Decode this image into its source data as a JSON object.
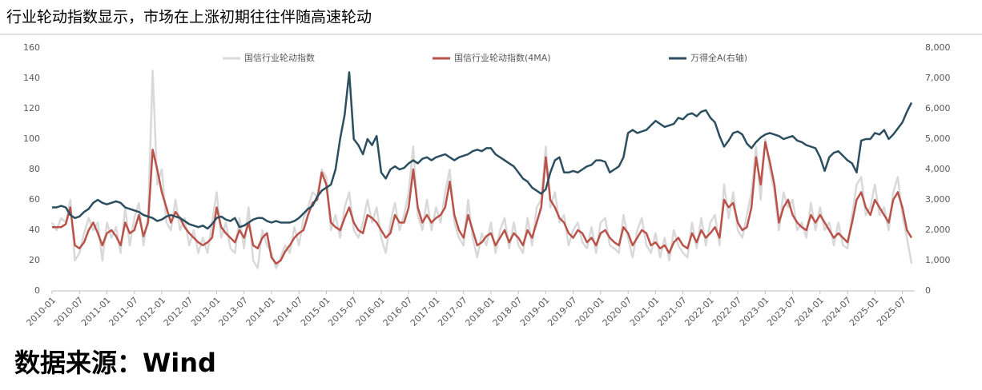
{
  "chart_data": {
    "type": "line",
    "title": "行业轮动指数显示，市场在上涨初期往往伴随高速轮动",
    "source": "数据来源：Wind",
    "categories": [
      "2010-01",
      null,
      null,
      null,
      null,
      null,
      "2010-07",
      null,
      null,
      null,
      null,
      null,
      "2011-01",
      null,
      null,
      null,
      null,
      null,
      "2011-07",
      null,
      null,
      null,
      null,
      null,
      "2012-01",
      null,
      null,
      null,
      null,
      null,
      "2012-07",
      null,
      null,
      null,
      null,
      null,
      "2013-01",
      null,
      null,
      null,
      null,
      null,
      "2013-07",
      null,
      null,
      null,
      null,
      null,
      "2014-01",
      null,
      null,
      null,
      null,
      null,
      "2014-07",
      null,
      null,
      null,
      null,
      null,
      "2015-01",
      null,
      null,
      null,
      null,
      null,
      "2015-07",
      null,
      null,
      null,
      null,
      null,
      "2016-01",
      null,
      null,
      null,
      null,
      null,
      "2016-07",
      null,
      null,
      null,
      null,
      null,
      "2017-01",
      null,
      null,
      null,
      null,
      null,
      "2017-07",
      null,
      null,
      null,
      null,
      null,
      "2018-01",
      null,
      null,
      null,
      null,
      null,
      "2018-07",
      null,
      null,
      null,
      null,
      null,
      "2019-01",
      null,
      null,
      null,
      null,
      null,
      "2019-07",
      null,
      null,
      null,
      null,
      null,
      "2020-01",
      null,
      null,
      null,
      null,
      null,
      "2020-07",
      null,
      null,
      null,
      null,
      null,
      "2021-01",
      null,
      null,
      null,
      null,
      null,
      "2021-07",
      null,
      null,
      null,
      null,
      null,
      "2022-01",
      null,
      null,
      null,
      null,
      null,
      "2022-07",
      null,
      null,
      null,
      null,
      null,
      "2023-01",
      null,
      null,
      null,
      null,
      null,
      "2023-07",
      null,
      null,
      null,
      null,
      null,
      "2024-01",
      null,
      null,
      null,
      null,
      null,
      "2024-07",
      null,
      null,
      null,
      null,
      null,
      "2025-01",
      null,
      null,
      null,
      null,
      null,
      "2025-07",
      null,
      null
    ],
    "series": [
      {
        "name": "国信行业轮动指数",
        "color": "#d9d9d9",
        "axis": "y",
        "values": [
          45,
          40,
          48,
          45,
          60,
          20,
          25,
          38,
          48,
          40,
          45,
          20,
          45,
          35,
          42,
          25,
          55,
          30,
          48,
          58,
          30,
          50,
          145,
          70,
          80,
          45,
          40,
          60,
          40,
          48,
          30,
          40,
          25,
          35,
          25,
          45,
          65,
          35,
          45,
          28,
          25,
          48,
          28,
          55,
          20,
          15,
          40,
          30,
          25,
          15,
          22,
          30,
          25,
          42,
          30,
          48,
          55,
          65,
          62,
          80,
          75,
          40,
          50,
          35,
          55,
          65,
          40,
          35,
          45,
          60,
          45,
          55,
          35,
          25,
          45,
          58,
          40,
          50,
          65,
          95,
          50,
          40,
          60,
          40,
          55,
          45,
          65,
          80,
          45,
          35,
          30,
          60,
          35,
          22,
          38,
          30,
          45,
          25,
          40,
          48,
          28,
          45,
          30,
          25,
          48,
          30,
          55,
          60,
          95,
          55,
          65,
          45,
          50,
          30,
          40,
          45,
          32,
          28,
          42,
          25,
          45,
          48,
          30,
          28,
          25,
          50,
          35,
          22,
          40,
          48,
          30,
          25,
          38,
          22,
          35,
          20,
          40,
          30,
          25,
          22,
          45,
          28,
          48,
          30,
          45,
          50,
          30,
          70,
          48,
          65,
          40,
          35,
          50,
          65,
          95,
          60,
          100,
          80,
          65,
          40,
          65,
          55,
          60,
          40,
          45,
          35,
          58,
          40,
          55,
          40,
          45,
          30,
          45,
          30,
          28,
          50,
          70,
          75,
          50,
          55,
          70,
          50,
          55,
          40,
          65,
          75,
          50,
          35,
          18
        ]
      },
      {
        "name": "国信行业轮动指数(4MA)",
        "color": "#b9534a",
        "axis": "y",
        "values": [
          42,
          42,
          42,
          44,
          55,
          30,
          28,
          32,
          40,
          45,
          38,
          30,
          38,
          40,
          36,
          30,
          45,
          38,
          40,
          50,
          36,
          45,
          93,
          80,
          65,
          55,
          45,
          52,
          48,
          42,
          38,
          35,
          32,
          30,
          32,
          35,
          55,
          42,
          38,
          35,
          32,
          40,
          35,
          45,
          30,
          28,
          35,
          38,
          22,
          18,
          20,
          26,
          30,
          35,
          38,
          40,
          50,
          58,
          60,
          78,
          70,
          45,
          42,
          40,
          48,
          55,
          45,
          40,
          38,
          50,
          48,
          45,
          40,
          35,
          38,
          50,
          45,
          45,
          55,
          80,
          55,
          45,
          50,
          45,
          48,
          50,
          55,
          72,
          50,
          40,
          35,
          50,
          40,
          30,
          32,
          36,
          38,
          30,
          35,
          40,
          32,
          38,
          35,
          30,
          40,
          35,
          45,
          55,
          88,
          60,
          55,
          48,
          45,
          38,
          35,
          40,
          38,
          32,
          35,
          30,
          38,
          40,
          35,
          32,
          30,
          42,
          38,
          30,
          35,
          40,
          38,
          30,
          32,
          28,
          30,
          25,
          32,
          35,
          30,
          28,
          38,
          32,
          40,
          35,
          38,
          42,
          35,
          60,
          55,
          58,
          45,
          40,
          42,
          55,
          88,
          70,
          98,
          85,
          70,
          45,
          55,
          60,
          50,
          45,
          42,
          40,
          50,
          45,
          50,
          45,
          40,
          35,
          38,
          35,
          32,
          45,
          60,
          65,
          55,
          50,
          60,
          55,
          50,
          45,
          60,
          65,
          55,
          40,
          35
        ]
      },
      {
        "name": "万得全A(右轴)",
        "color": "#2b4f60",
        "axis": "y2",
        "values": [
          2750,
          2750,
          2800,
          2750,
          2500,
          2400,
          2450,
          2600,
          2700,
          2900,
          3000,
          2900,
          2850,
          2900,
          2950,
          2900,
          2750,
          2700,
          2650,
          2600,
          2500,
          2450,
          2400,
          2300,
          2350,
          2450,
          2500,
          2450,
          2400,
          2300,
          2200,
          2150,
          2100,
          2150,
          2050,
          2200,
          2400,
          2450,
          2350,
          2300,
          2400,
          2100,
          2150,
          2250,
          2350,
          2400,
          2400,
          2300,
          2250,
          2300,
          2250,
          2250,
          2250,
          2300,
          2400,
          2550,
          2700,
          2800,
          3100,
          3300,
          3400,
          3500,
          4000,
          5000,
          5800,
          7200,
          5000,
          4800,
          4500,
          5000,
          4800,
          5100,
          3900,
          3700,
          4000,
          4100,
          4000,
          4050,
          4200,
          4300,
          4200,
          4350,
          4400,
          4300,
          4400,
          4450,
          4500,
          4400,
          4300,
          4400,
          4450,
          4500,
          4600,
          4650,
          4600,
          4700,
          4700,
          4500,
          4400,
          4300,
          4200,
          4100,
          3900,
          3700,
          3600,
          3400,
          3300,
          3200,
          3350,
          3900,
          4300,
          4400,
          3900,
          3900,
          3950,
          3900,
          4000,
          4100,
          4150,
          4300,
          4300,
          4250,
          3900,
          4000,
          4100,
          4400,
          5200,
          5300,
          5200,
          5250,
          5300,
          5450,
          5600,
          5500,
          5400,
          5450,
          5500,
          5700,
          5650,
          5800,
          5850,
          5750,
          5900,
          5950,
          5700,
          5550,
          5100,
          4750,
          4950,
          5200,
          5250,
          5150,
          4850,
          4700,
          4900,
          5050,
          5150,
          5200,
          5150,
          5100,
          5000,
          5050,
          5100,
          4950,
          4900,
          4800,
          4750,
          4700,
          4400,
          3950,
          4400,
          4550,
          4600,
          4450,
          4300,
          4200,
          3900,
          4950,
          5000,
          5000,
          5200,
          5150,
          5300,
          5000,
          5150,
          5350,
          5550,
          5900,
          6200
        ]
      }
    ],
    "ylim": [
      0,
      160
    ],
    "yticks": [
      0,
      20,
      40,
      60,
      80,
      100,
      120,
      140,
      160
    ],
    "y2lim": [
      0,
      8000
    ],
    "y2ticks": [
      0,
      {
        "value": 1000,
        "label": "1,000"
      },
      {
        "value": 2000,
        "label": "2,000"
      },
      {
        "value": 3000,
        "label": "3,000"
      },
      {
        "value": 4000,
        "label": "4,000"
      },
      {
        "value": 5000,
        "label": "5,000"
      },
      {
        "value": 6000,
        "label": "6,000"
      },
      {
        "value": 7000,
        "label": "7,000"
      },
      {
        "value": 8000,
        "label": "8,000"
      }
    ],
    "grid": false,
    "legend": "top"
  }
}
